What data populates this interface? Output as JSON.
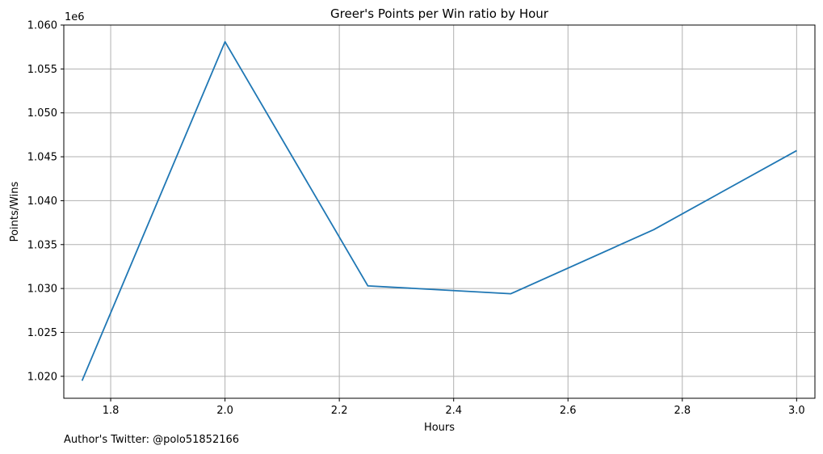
{
  "chart_data": {
    "type": "line",
    "title": "Greer's Points per Win ratio by Hour",
    "xlabel": "Hours",
    "ylabel": "Points/Wins",
    "y_offset_label": "1e6",
    "xlim": [
      1.718,
      3.032
    ],
    "ylim": [
      1.0175,
      1.06
    ],
    "x_ticks": [
      1.8,
      2.0,
      2.2,
      2.4,
      2.6,
      2.8,
      3.0
    ],
    "x_tick_labels": [
      "1.8",
      "2.0",
      "2.2",
      "2.4",
      "2.6",
      "2.8",
      "3.0"
    ],
    "y_ticks": [
      1.02,
      1.025,
      1.03,
      1.035,
      1.04,
      1.045,
      1.05,
      1.055,
      1.06
    ],
    "y_tick_labels": [
      "1.020",
      "1.025",
      "1.030",
      "1.035",
      "1.040",
      "1.045",
      "1.050",
      "1.055",
      "1.060"
    ],
    "grid": true,
    "line_color": "#1f77b4",
    "x": [
      1.75,
      2.0,
      2.25,
      2.5,
      2.75,
      3.0
    ],
    "y": [
      1.0195,
      1.0581,
      1.0303,
      1.0294,
      1.0367,
      1.0457
    ]
  },
  "footer": {
    "text": "Author's Twitter: @polo51852166"
  }
}
